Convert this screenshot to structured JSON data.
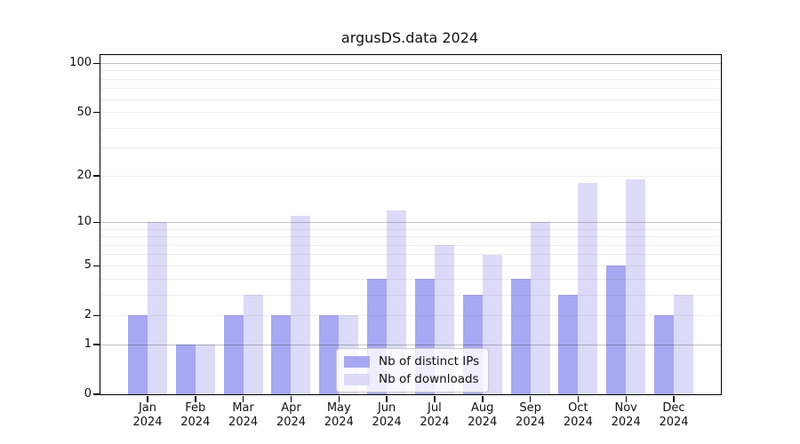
{
  "chart_data": {
    "type": "bar",
    "title": "argusDS.data 2024",
    "y_scale": "symlog (log1p)",
    "months": [
      "Jan",
      "Feb",
      "Mar",
      "Apr",
      "May",
      "Jun",
      "Jul",
      "Aug",
      "Sep",
      "Oct",
      "Nov",
      "Dec"
    ],
    "year": "2024",
    "categories": [
      "Jan 2024",
      "Feb 2024",
      "Mar 2024",
      "Apr 2024",
      "May 2024",
      "Jun 2024",
      "Jul 2024",
      "Aug 2024",
      "Sep 2024",
      "Oct 2024",
      "Nov 2024",
      "Dec 2024"
    ],
    "series": [
      {
        "name": "Nb of distinct IPs",
        "color": "#a8a8f2",
        "values": [
          2,
          1,
          2,
          2,
          2,
          4,
          4,
          3,
          4,
          3,
          5,
          2
        ]
      },
      {
        "name": "Nb of downloads",
        "color": "#dbdbf8",
        "values": [
          10,
          1,
          3,
          11,
          2,
          12,
          7,
          6,
          10,
          18,
          19,
          3
        ]
      }
    ],
    "y_ticks": [
      0,
      1,
      2,
      5,
      10,
      20,
      50,
      100
    ],
    "y_tick_labels": [
      "0",
      "1",
      "2",
      "5",
      "10",
      "20",
      "50",
      "100"
    ],
    "ylim": [
      0,
      112
    ],
    "grid": {
      "major_lines": [
        1,
        10,
        100
      ],
      "minor_lines": [
        2,
        3,
        4,
        5,
        6,
        7,
        8,
        9,
        20,
        30,
        40,
        50,
        60,
        70,
        80,
        90
      ]
    },
    "legend_position": "lower center",
    "xlabel": "",
    "ylabel": ""
  },
  "colors": {
    "bar_ips": "#a8a8f2",
    "bar_downloads": "#dbdbf8",
    "background": "#ffffff",
    "spine": "#000000",
    "grid_major": "#c6c6c6",
    "grid_minor": "#ededed",
    "text": "#111111",
    "legend_border": "#cccccc"
  }
}
